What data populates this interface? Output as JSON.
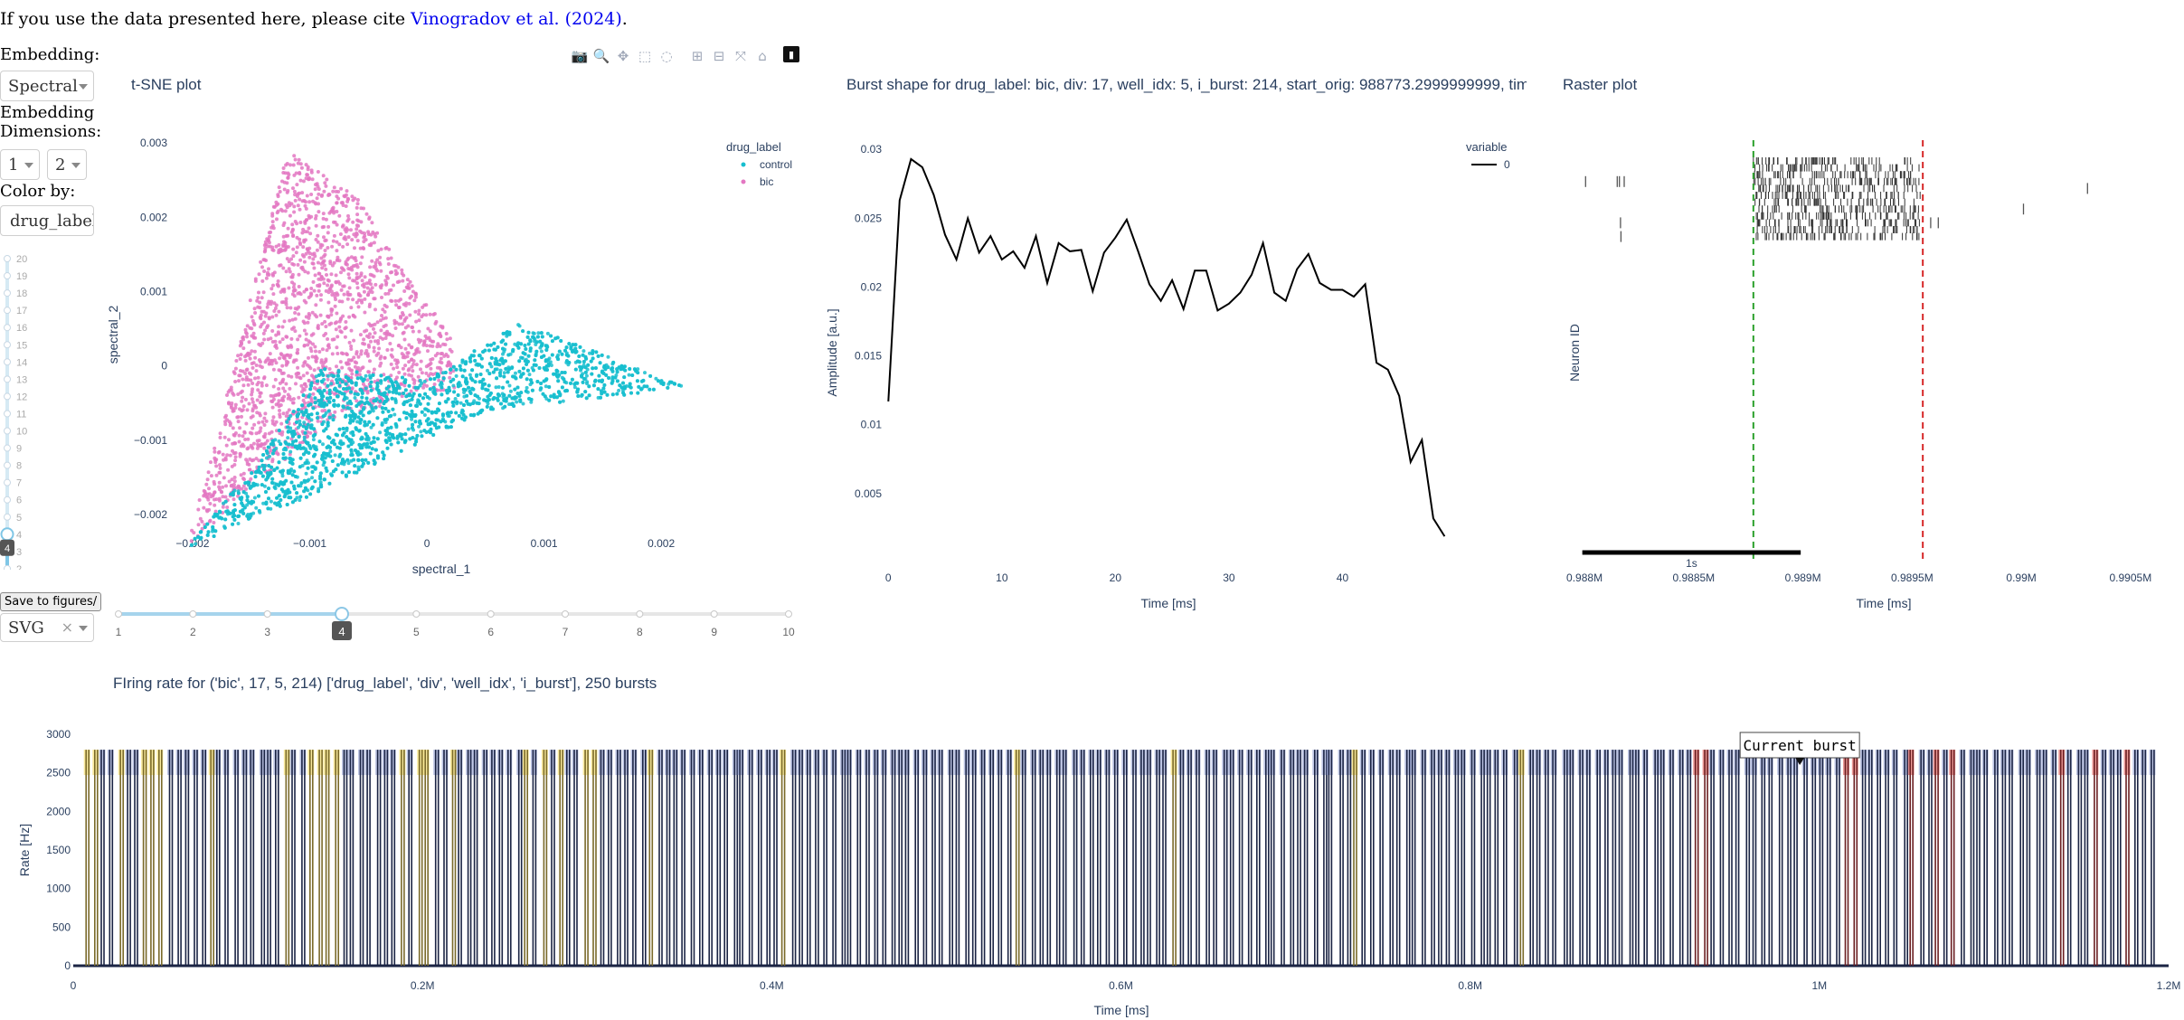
{
  "citation": {
    "prefix": "If you use the data presented here, please cite ",
    "link": "Vinogradov et al. (2024)",
    "suffix": "."
  },
  "controls": {
    "embedding_label": "Embedding:",
    "embedding_value": "Spectral",
    "dims_label_1": "Embedding",
    "dims_label_2": "Dimensions:",
    "dim1": "1",
    "dim2": "2",
    "colorby_label": "Color by:",
    "colorby_value": "drug_label",
    "vslider_ticks": [
      "20",
      "19",
      "18",
      "17",
      "16",
      "15",
      "14",
      "13",
      "12",
      "11",
      "10",
      "9",
      "8",
      "7",
      "6",
      "5",
      "4",
      "3",
      "2"
    ],
    "vslider_value": "4",
    "save_button": "Save to figures/",
    "format_value": "SVG",
    "format_clear": "×"
  },
  "hslider": {
    "ticks": [
      "1",
      "2",
      "3",
      "4",
      "5",
      "6",
      "7",
      "8",
      "9",
      "10"
    ],
    "value": "4"
  },
  "modebar": [
    "camera-icon",
    "zoom-icon",
    "pan-icon",
    "box-select-icon",
    "lasso-icon",
    "zoom-in-icon",
    "zoom-out-icon",
    "autoscale-icon",
    "home-icon",
    "plotly-logo-icon"
  ],
  "tsne": {
    "title": "t-SNE plot",
    "xlabel": "spectral_1",
    "ylabel": "spectral_2",
    "xticks": [
      "−0.002",
      "−0.001",
      "0",
      "0.001",
      "0.002"
    ],
    "yticks": [
      "0.003",
      "0.002",
      "0.001",
      "0",
      "−0.001",
      "−0.002"
    ],
    "legend_title": "drug_label",
    "legend": [
      {
        "name": "control",
        "color": "#17becf"
      },
      {
        "name": "bic",
        "color": "#e377c2"
      }
    ]
  },
  "burst": {
    "title": "Burst shape for drug_label: bic, div: 17, well_idx: 5, i_burst: 214, start_orig: 988773.2999999999, tim",
    "xlabel": "Time [ms]",
    "ylabel": "Amplitude [a.u.]",
    "xticks": [
      "0",
      "10",
      "20",
      "30",
      "40"
    ],
    "yticks": [
      "0.03",
      "0.025",
      "0.02",
      "0.015",
      "0.01",
      "0.005"
    ],
    "legend_title": "variable",
    "legend_item": "0"
  },
  "raster": {
    "title": "Raster plot",
    "xlabel": "Time [ms]",
    "ylabel": "Neuron ID",
    "xticks": [
      "0.988M",
      "0.9885M",
      "0.989M",
      "0.9895M",
      "0.99M",
      "0.9905M"
    ],
    "scalebar_label": "1s"
  },
  "rate": {
    "title": "FIring rate for ('bic', 17, 5, 214) ['drug_label', 'div', 'well_idx', 'i_burst'], 250 bursts",
    "xlabel": "Time [ms]",
    "ylabel": "Rate [Hz]",
    "xticks": [
      "0",
      "0.2M",
      "0.4M",
      "0.6M",
      "0.8M",
      "1M",
      "1.2M"
    ],
    "yticks": [
      "3000",
      "2500",
      "2000",
      "1500",
      "1000",
      "500",
      "0"
    ],
    "annotation": "Current burst"
  },
  "chart_data": [
    {
      "type": "scatter",
      "title": "t-SNE plot",
      "xlabel": "spectral_1",
      "ylabel": "spectral_2",
      "xlim": [
        -0.0021,
        0.0023
      ],
      "ylim": [
        -0.0025,
        0.0031
      ],
      "series": [
        {
          "name": "control",
          "color": "#17becf",
          "region": [
            [
              -0.00205,
              -0.00245
            ],
            [
              -0.0014,
              -0.0012
            ],
            [
              -0.0009,
              0.0
            ],
            [
              0.0,
              -0.0002
            ],
            [
              0.0008,
              0.0006
            ],
            [
              0.00222,
              -0.0003
            ],
            [
              0.0005,
              -0.0006
            ],
            [
              -0.0012,
              -0.0019
            ]
          ]
        },
        {
          "name": "bic",
          "color": "#e377c2",
          "region": [
            [
              -0.00205,
              -0.00245
            ],
            [
              -0.00135,
              0.00185
            ],
            [
              -0.0012,
              0.0029
            ],
            [
              -0.0006,
              0.0023
            ],
            [
              0.0002,
              0.0004
            ],
            [
              0.00025,
              -0.0003
            ],
            [
              -0.0008,
              -0.0007
            ],
            [
              -0.0016,
              -0.0018
            ]
          ]
        }
      ]
    },
    {
      "type": "line",
      "title": "Burst shape",
      "xlabel": "Time [ms]",
      "ylabel": "Amplitude [a.u.]",
      "xlim": [
        -0.5,
        50
      ],
      "ylim": [
        0,
        0.031
      ],
      "series": [
        {
          "name": "0",
          "color": "#000000",
          "x": [
            0,
            1,
            2,
            3,
            4,
            5,
            6,
            7,
            8,
            9,
            10,
            11,
            12,
            13,
            14,
            15,
            16,
            17,
            18,
            19,
            20,
            21,
            22,
            23,
            24,
            25,
            26,
            27,
            28,
            29,
            30,
            31,
            32,
            33,
            34,
            35,
            36,
            37,
            38,
            39,
            40,
            41,
            42,
            43,
            44,
            45,
            46,
            47,
            48,
            49
          ],
          "y": [
            0.0117,
            0.0263,
            0.0293,
            0.0287,
            0.0267,
            0.0238,
            0.022,
            0.025,
            0.0225,
            0.0237,
            0.022,
            0.0226,
            0.0214,
            0.0237,
            0.0203,
            0.0232,
            0.0226,
            0.0227,
            0.0197,
            0.0225,
            0.0236,
            0.0249,
            0.0226,
            0.0202,
            0.019,
            0.0205,
            0.0184,
            0.0212,
            0.0212,
            0.0183,
            0.0188,
            0.0196,
            0.0209,
            0.0232,
            0.0196,
            0.019,
            0.0213,
            0.0224,
            0.0203,
            0.0198,
            0.0198,
            0.0193,
            0.0202,
            0.0145,
            0.014,
            0.0121,
            0.0073,
            0.0089,
            0.0032,
            0.0019
          ]
        }
      ]
    },
    {
      "type": "scatter",
      "title": "Raster plot",
      "xlabel": "Time [ms]",
      "ylabel": "Neuron ID",
      "xlim": [
        987950,
        990600
      ],
      "burst_start": 988773.3,
      "burst_end": 989549,
      "dense_block": [
        988773,
        989540
      ],
      "sparse_spikes": [
        [
          988005,
          3
        ],
        [
          988150,
          3
        ],
        [
          988160,
          3
        ],
        [
          988182,
          3
        ],
        [
          988165,
          9
        ],
        [
          988167,
          11
        ],
        [
          990010,
          7
        ],
        [
          989585,
          9
        ],
        [
          989620,
          9
        ],
        [
          990303,
          4
        ]
      ]
    },
    {
      "type": "line",
      "title": "FIring rate",
      "xlabel": "Time [ms]",
      "ylabel": "Rate [Hz]",
      "xlim": [
        0,
        1200000
      ],
      "ylim": [
        0,
        3000
      ],
      "n_bursts": 250,
      "burst_peak_rate": 2800,
      "current_burst_time": 988773.3,
      "highlight_colors": {
        "lavender": "#9aa6d6",
        "yellow": "#f4dd69",
        "red": "#e06460",
        "burst_line": "#1b2444"
      }
    }
  ]
}
